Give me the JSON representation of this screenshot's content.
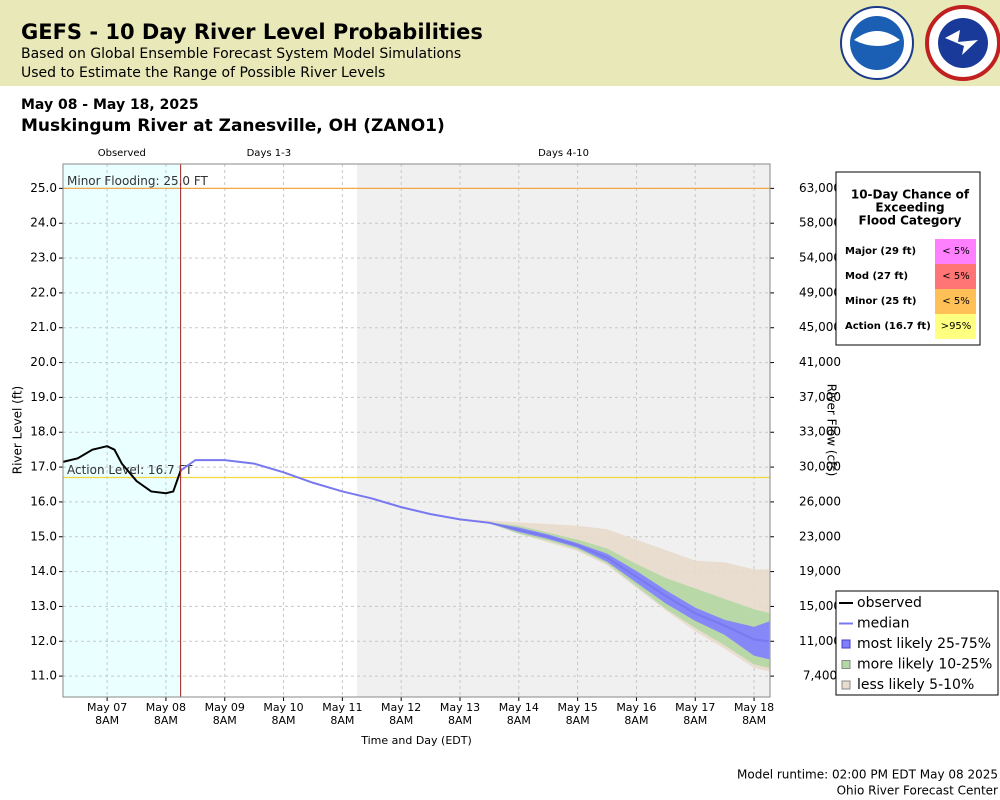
{
  "header": {
    "title": "GEFS - 10 Day River Level Probabilities",
    "subtitle": [
      "Based on Global Ensemble Forecast System Model Simulations",
      "Used to Estimate the Range of Possible River Levels"
    ]
  },
  "date_range": "May 08 - May 18, 2025",
  "location": "Muskingum River at Zanesville, OH (ZANO1)",
  "footer": [
    "Model runtime: 02:00 PM EDT May 08 2025",
    "Ohio River Forecast Center"
  ],
  "chart_data": {
    "type": "line",
    "xlabel": "Time and Day (EDT)",
    "ylabel": "River Level (ft)",
    "y2label": "River Flow (cfs)",
    "xlim": [
      "2025-05-06T14:00",
      "2025-05-18T14:30"
    ],
    "ylim": [
      10.4,
      25.7
    ],
    "grid": true,
    "xticks": [
      {
        "value": "2025-05-07T08:00",
        "label": [
          "May 07",
          "8AM"
        ]
      },
      {
        "value": "2025-05-08T08:00",
        "label": [
          "May 08",
          "8AM"
        ]
      },
      {
        "value": "2025-05-09T08:00",
        "label": [
          "May 09",
          "8AM"
        ]
      },
      {
        "value": "2025-05-10T08:00",
        "label": [
          "May 10",
          "8AM"
        ]
      },
      {
        "value": "2025-05-11T08:00",
        "label": [
          "May 11",
          "8AM"
        ]
      },
      {
        "value": "2025-05-12T08:00",
        "label": [
          "May 12",
          "8AM"
        ]
      },
      {
        "value": "2025-05-13T08:00",
        "label": [
          "May 13",
          "8AM"
        ]
      },
      {
        "value": "2025-05-14T08:00",
        "label": [
          "May 14",
          "8AM"
        ]
      },
      {
        "value": "2025-05-15T08:00",
        "label": [
          "May 15",
          "8AM"
        ]
      },
      {
        "value": "2025-05-16T08:00",
        "label": [
          "May 16",
          "8AM"
        ]
      },
      {
        "value": "2025-05-17T08:00",
        "label": [
          "May 17",
          "8AM"
        ]
      },
      {
        "value": "2025-05-18T08:00",
        "label": [
          "May 18",
          "8AM"
        ]
      }
    ],
    "yticks": [
      {
        "value": 11,
        "label": "11.0"
      },
      {
        "value": 12,
        "label": "12.0"
      },
      {
        "value": 13,
        "label": "13.0"
      },
      {
        "value": 14,
        "label": "14.0"
      },
      {
        "value": 15,
        "label": "15.0"
      },
      {
        "value": 16,
        "label": "16.0"
      },
      {
        "value": 17,
        "label": "17.0"
      },
      {
        "value": 18,
        "label": "18.0"
      },
      {
        "value": 19,
        "label": "19.0"
      },
      {
        "value": 20,
        "label": "20.0"
      },
      {
        "value": 21,
        "label": "21.0"
      },
      {
        "value": 22,
        "label": "22.0"
      },
      {
        "value": 23,
        "label": "23.0"
      },
      {
        "value": 24,
        "label": "24.0"
      },
      {
        "value": 25,
        "label": "25.0"
      }
    ],
    "y2ticks": [
      {
        "value": 7400,
        "label": "7,400"
      },
      {
        "value": 11000,
        "label": "11,000"
      },
      {
        "value": 15000,
        "label": "15,000"
      },
      {
        "value": 19000,
        "label": "19,000"
      },
      {
        "value": 23000,
        "label": "23,000"
      },
      {
        "value": 26000,
        "label": "26,000"
      },
      {
        "value": 30000,
        "label": "30,000"
      },
      {
        "value": 33000,
        "label": "33,000"
      },
      {
        "value": 37000,
        "label": "37,000"
      },
      {
        "value": 41000,
        "label": "41,000"
      },
      {
        "value": 45000,
        "label": "45,000"
      },
      {
        "value": 49000,
        "label": "49,000"
      },
      {
        "value": 54000,
        "label": "54,000"
      },
      {
        "value": 58000,
        "label": "58,000"
      },
      {
        "value": 63000,
        "label": "63,000"
      }
    ],
    "periods": [
      {
        "label": "Observed",
        "start": "2025-05-06T14:00",
        "end": "2025-05-08T14:00",
        "color": "#eaffff"
      },
      {
        "label": "Days 1-3",
        "start": "2025-05-08T14:00",
        "end": "2025-05-11T14:00",
        "color": "#ffffff"
      },
      {
        "label": "Days 4-10",
        "start": "2025-05-11T14:00",
        "end": "2025-05-18T14:30",
        "color": "#f0f0f0"
      }
    ],
    "thresholds": [
      {
        "label": "Minor Flooding: 25.0 FT",
        "value": 25,
        "color": "#f0a848"
      },
      {
        "label": "Action Level: 16.7 FT",
        "value": 16.7,
        "color": "#f0d840"
      }
    ],
    "legend": "lower right",
    "series": [
      {
        "name": "observed",
        "color": "#000000",
        "kind": "line",
        "x": [
          "2025-05-06T14:00",
          "2025-05-06T20:00",
          "2025-05-07T02:00",
          "2025-05-07T05:00",
          "2025-05-07T08:00",
          "2025-05-07T11:00",
          "2025-05-07T14:00",
          "2025-05-07T20:00",
          "2025-05-08T02:00",
          "2025-05-08T08:00",
          "2025-05-08T11:00",
          "2025-05-08T14:00"
        ],
        "values": [
          17.15,
          17.25,
          17.5,
          17.55,
          17.6,
          17.5,
          17.1,
          16.6,
          16.3,
          16.25,
          16.3,
          16.9
        ]
      },
      {
        "name": "median",
        "color": "#7878f0",
        "kind": "line",
        "x": [
          "2025-05-08T14:00",
          "2025-05-08T20:00",
          "2025-05-09T08:00",
          "2025-05-09T20:00",
          "2025-05-10T08:00",
          "2025-05-10T20:00",
          "2025-05-11T08:00",
          "2025-05-11T20:00",
          "2025-05-12T08:00",
          "2025-05-12T20:00",
          "2025-05-13T08:00",
          "2025-05-13T20:00",
          "2025-05-14T08:00",
          "2025-05-14T20:00",
          "2025-05-15T08:00",
          "2025-05-15T20:00",
          "2025-05-16T08:00",
          "2025-05-16T20:00",
          "2025-05-17T08:00",
          "2025-05-17T20:00",
          "2025-05-18T08:00",
          "2025-05-18T14:00"
        ],
        "values": [
          16.9,
          17.2,
          17.2,
          17.1,
          16.85,
          16.55,
          16.3,
          16.1,
          15.85,
          15.65,
          15.5,
          15.4,
          15.2,
          15.0,
          14.75,
          14.4,
          13.85,
          13.3,
          12.8,
          12.45,
          12.05,
          12.0
        ]
      },
      {
        "name": "most likely 25-75%",
        "color": "#8080ff",
        "kind": "band",
        "x": [
          "2025-05-08T14:00",
          "2025-05-08T20:00",
          "2025-05-09T08:00",
          "2025-05-09T20:00",
          "2025-05-10T08:00",
          "2025-05-10T20:00",
          "2025-05-11T08:00",
          "2025-05-11T20:00",
          "2025-05-12T08:00",
          "2025-05-12T20:00",
          "2025-05-13T08:00",
          "2025-05-13T20:00",
          "2025-05-14T08:00",
          "2025-05-14T20:00",
          "2025-05-15T08:00",
          "2025-05-15T20:00",
          "2025-05-16T08:00",
          "2025-05-16T20:00",
          "2025-05-17T08:00",
          "2025-05-17T20:00",
          "2025-05-18T08:00",
          "2025-05-18T14:00"
        ],
        "lower": [
          16.9,
          17.2,
          17.2,
          17.1,
          16.85,
          16.55,
          16.3,
          16.1,
          15.85,
          15.65,
          15.5,
          15.4,
          15.15,
          14.95,
          14.7,
          14.3,
          13.7,
          13.1,
          12.6,
          12.2,
          11.6,
          11.5
        ],
        "upper": [
          16.9,
          17.2,
          17.2,
          17.1,
          16.85,
          16.55,
          16.3,
          16.1,
          15.85,
          15.65,
          15.5,
          15.4,
          15.25,
          15.05,
          14.8,
          14.5,
          14.0,
          13.45,
          12.95,
          12.6,
          12.4,
          12.55
        ]
      },
      {
        "name": "more likely 10-25%",
        "color": "#b4d8a4",
        "kind": "band",
        "x": [
          "2025-05-08T14:00",
          "2025-05-08T20:00",
          "2025-05-09T08:00",
          "2025-05-09T20:00",
          "2025-05-10T08:00",
          "2025-05-10T20:00",
          "2025-05-11T08:00",
          "2025-05-11T20:00",
          "2025-05-12T08:00",
          "2025-05-12T20:00",
          "2025-05-13T08:00",
          "2025-05-13T20:00",
          "2025-05-14T08:00",
          "2025-05-14T20:00",
          "2025-05-15T08:00",
          "2025-05-15T20:00",
          "2025-05-16T08:00",
          "2025-05-16T20:00",
          "2025-05-17T08:00",
          "2025-05-17T20:00",
          "2025-05-18T08:00",
          "2025-05-18T14:00"
        ],
        "lower": [
          16.9,
          17.2,
          17.2,
          17.1,
          16.85,
          16.55,
          16.3,
          16.1,
          15.85,
          15.65,
          15.5,
          15.4,
          15.1,
          14.9,
          14.65,
          14.25,
          13.6,
          12.95,
          12.4,
          11.9,
          11.35,
          11.25
        ],
        "upper": [
          16.9,
          17.2,
          17.2,
          17.1,
          16.85,
          16.55,
          16.3,
          16.1,
          15.85,
          15.65,
          15.5,
          15.4,
          15.3,
          15.1,
          14.9,
          14.65,
          14.2,
          13.8,
          13.5,
          13.2,
          12.9,
          12.8
        ]
      },
      {
        "name": "less likely 5-10%",
        "color": "#e8dccc",
        "kind": "band",
        "x": [
          "2025-05-08T14:00",
          "2025-05-08T20:00",
          "2025-05-09T08:00",
          "2025-05-09T20:00",
          "2025-05-10T08:00",
          "2025-05-10T20:00",
          "2025-05-11T08:00",
          "2025-05-11T20:00",
          "2025-05-12T08:00",
          "2025-05-12T20:00",
          "2025-05-13T08:00",
          "2025-05-13T20:00",
          "2025-05-14T08:00",
          "2025-05-14T20:00",
          "2025-05-15T08:00",
          "2025-05-15T20:00",
          "2025-05-16T08:00",
          "2025-05-16T20:00",
          "2025-05-17T08:00",
          "2025-05-17T20:00",
          "2025-05-18T08:00",
          "2025-05-18T14:00"
        ],
        "lower": [
          16.9,
          17.2,
          17.2,
          17.1,
          16.85,
          16.55,
          16.3,
          16.1,
          15.85,
          15.65,
          15.5,
          15.4,
          15.1,
          14.85,
          14.6,
          14.2,
          13.55,
          12.9,
          12.3,
          11.8,
          11.25,
          11.15
        ],
        "upper": [
          16.9,
          17.2,
          17.2,
          17.1,
          16.85,
          16.55,
          16.3,
          16.1,
          15.85,
          15.65,
          15.5,
          15.45,
          15.4,
          15.35,
          15.3,
          15.2,
          14.9,
          14.6,
          14.3,
          14.25,
          14.05,
          14.05
        ]
      }
    ]
  },
  "flood_table": {
    "title": [
      "10-Day Chance of",
      "Exceeding",
      "Flood Category"
    ],
    "rows": [
      {
        "category": "Major (29 ft)",
        "chance": "< 5%",
        "color": "#ff80ff"
      },
      {
        "category": "Mod (27 ft)",
        "chance": "< 5%",
        "color": "#ff7474"
      },
      {
        "category": "Minor (25 ft)",
        "chance": "< 5%",
        "color": "#ffc058"
      },
      {
        "category": "Action (16.7 ft)",
        "chance": ">95%",
        "color": "#ffff80"
      }
    ]
  }
}
